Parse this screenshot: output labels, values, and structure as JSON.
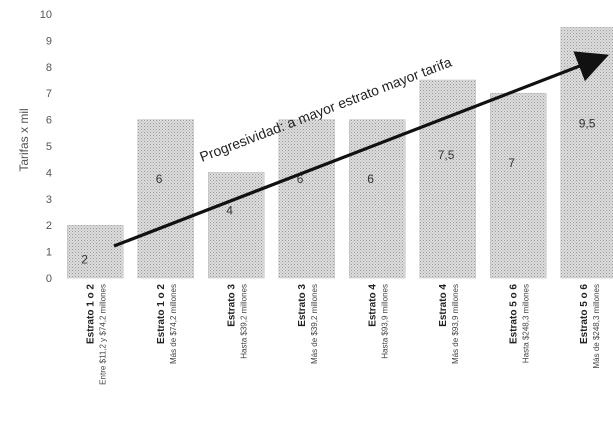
{
  "chart_data": {
    "type": "bar",
    "ylabel": "Tarifas x mil",
    "ylim": [
      0,
      10
    ],
    "yticks": [
      "0",
      "1",
      "2",
      "3",
      "4",
      "5",
      "6",
      "7",
      "8",
      "9",
      "10"
    ],
    "categories": [
      {
        "title": "Estrato 1 o 2",
        "sub": "Entre $11,2 y $74,2 millones"
      },
      {
        "title": "Estrato 1 o 2",
        "sub": "Más de $74,2 millones"
      },
      {
        "title": "Estrato 3",
        "sub": "Hasta $39,2 millones"
      },
      {
        "title": "Estrato 3",
        "sub": "Más de $39,2 millones"
      },
      {
        "title": "Estrato 4",
        "sub": "Hasta $93,9 millones"
      },
      {
        "title": "Estrato 4",
        "sub": "Más de $93,9 millones"
      },
      {
        "title": "Estrato 5 o 6",
        "sub": "Hasta $248,3 millones"
      },
      {
        "title": "Estrato 5 o 6",
        "sub": "Más de $248,3 millones"
      }
    ],
    "values": [
      2,
      6,
      4,
      6,
      6,
      7.5,
      7,
      9.5
    ],
    "value_labels": [
      "2",
      "6",
      "4",
      "6",
      "6",
      "7,5",
      "7",
      "9,5"
    ],
    "annotation": "Progresividad: a mayor estrato mayor tarifa",
    "grid": false,
    "bar_color": "#cfcfcf",
    "arrow_color": "#111111"
  }
}
